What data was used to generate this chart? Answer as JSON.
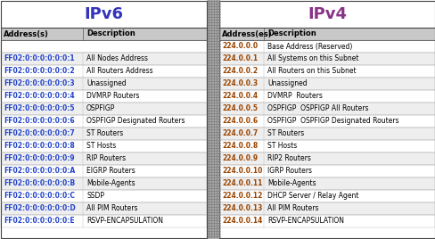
{
  "title_ipv6": "IPv6",
  "title_ipv4": "IPv4",
  "title_color_ipv6": "#3333bb",
  "title_color_ipv4": "#883388",
  "ipv6_address_color": "#2244cc",
  "ipv4_address_color": "#994400",
  "header_bg": "#c8c8c8",
  "row_bg_even": "#ffffff",
  "row_bg_odd": "#eeeeee",
  "sep_bg": "#b0b0b0",
  "border_color": "#333333",
  "grid_color": "#aaaaaa",
  "ipv6_rows": [
    [
      "FF02:0:0:0:0:0:0:1",
      "All Nodes Address"
    ],
    [
      "FF02:0:0:0:0:0:0:2",
      "All Routers Address"
    ],
    [
      "FF02:0:0:0:0:0:0:3",
      "Unassigned"
    ],
    [
      "FF02:0:0:0:0:0:0:4",
      "DVMRP Routers"
    ],
    [
      "FF02:0:0:0:0:0:0:5",
      "OSPFIGP"
    ],
    [
      "FF02:0:0:0:0:0:0:6",
      "OSPFIGP Designated Routers"
    ],
    [
      "FF02:0:0:0:0:0:0:7",
      "ST Routers"
    ],
    [
      "FF02:0:0:0:0:0:0:8",
      "ST Hosts"
    ],
    [
      "FF02:0:0:0:0:0:0:9",
      "RIP Routers"
    ],
    [
      "FF02:0:0:0:0:0:0:A",
      "EIGRP Routers"
    ],
    [
      "FF02:0:0:0:0:0:0:B",
      "Mobile-Agents"
    ],
    [
      "FF02:0:0:0:0:0:0:C",
      "SSDP"
    ],
    [
      "FF02:0:0:0:0:0:0:D",
      "All PIM Routers"
    ],
    [
      "FF02:0:0:0:0:0:0:E",
      "RSVP-ENCAPSULATION"
    ]
  ],
  "ipv4_rows": [
    [
      "224.0.0.0",
      "Base Address (Reserved)"
    ],
    [
      "224.0.0.1",
      "All Systems on this Subnet"
    ],
    [
      "224.0.0.2",
      "All Routers on this Subnet"
    ],
    [
      "224.0.0.3",
      "Unassigned"
    ],
    [
      "224.0.0.4",
      "DVMRP  Routers"
    ],
    [
      "224.0.0.5",
      "OSPFIGP  OSPFIGP All Routers"
    ],
    [
      "224.0.0.6",
      "OSPFIGP  OSPFIGP Designated Routers"
    ],
    [
      "224.0.0.7",
      "ST Routers"
    ],
    [
      "224.0.0.8",
      "ST Hosts"
    ],
    [
      "224.0.0.9",
      "RIP2 Routers"
    ],
    [
      "224.0.0.10",
      "IGRP Routers"
    ],
    [
      "224.0.0.11",
      "Mobile-Agents"
    ],
    [
      "224.0.0.12",
      "DHCP Server / Relay Agent"
    ],
    [
      "224.0.0.13",
      "All PIM Routers"
    ],
    [
      "224.0.0.14",
      "RSVP-ENCAPSULATION"
    ]
  ]
}
